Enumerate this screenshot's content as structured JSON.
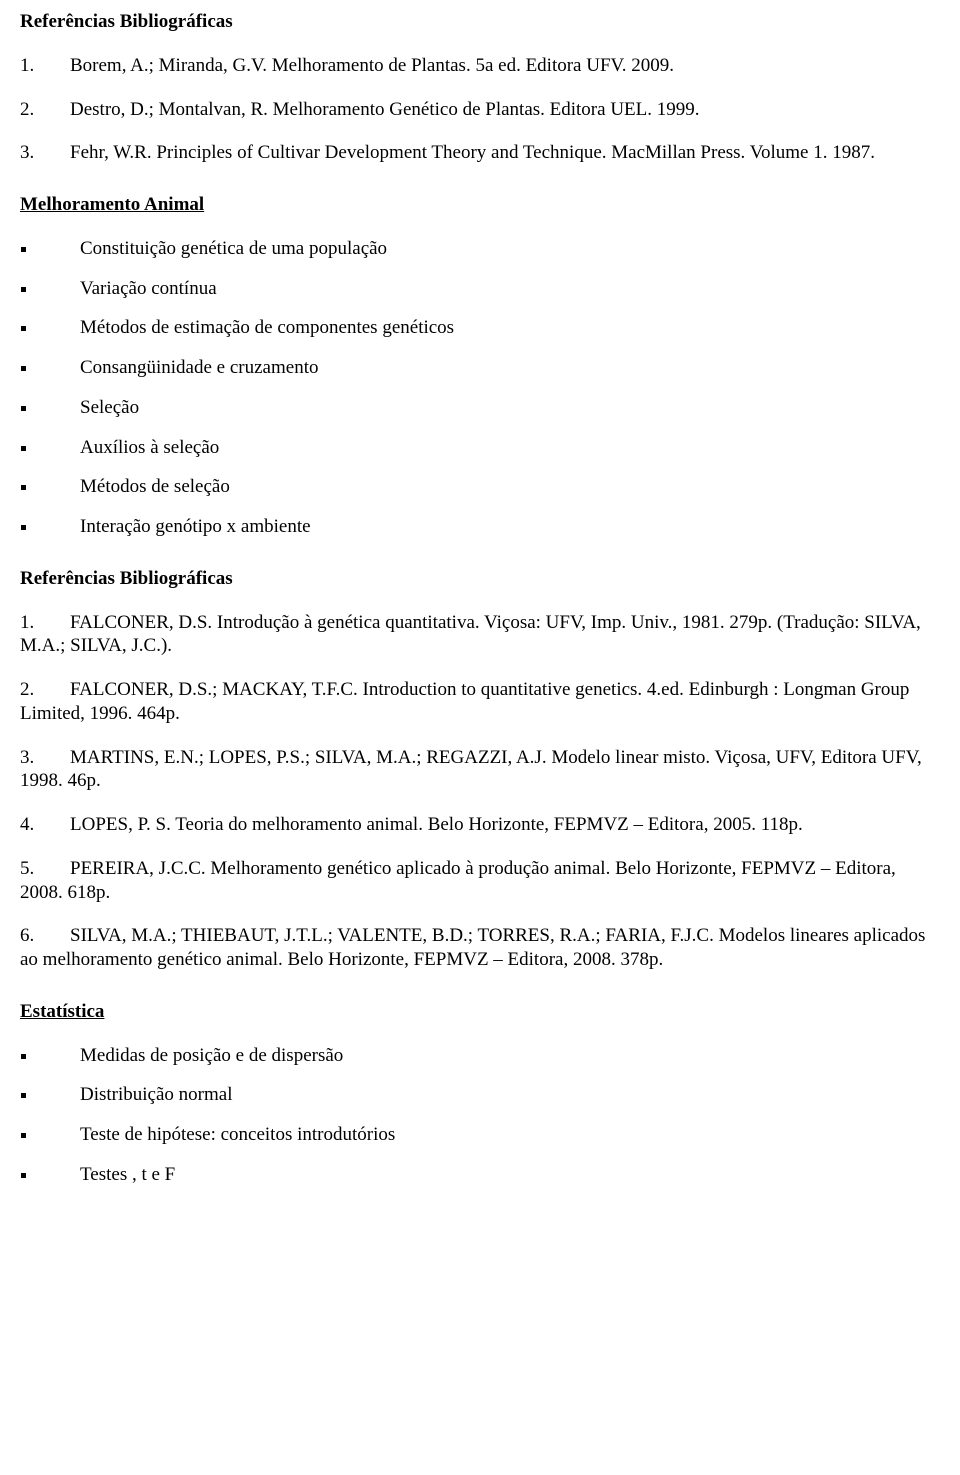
{
  "headings": {
    "ref1": "Referências Bibliográficas",
    "animal": "Melhoramento Animal",
    "ref2": "Referências Bibliográficas",
    "estat": "Estatística"
  },
  "refsA": {
    "r1": {
      "n": "1.",
      "text": "Borem, A.; Miranda, G.V. Melhoramento de Plantas. 5a ed. Editora UFV. 2009."
    },
    "r2": {
      "n": "2.",
      "text": "Destro, D.; Montalvan, R. Melhoramento Genético de Plantas. Editora UEL. 1999."
    },
    "r3": {
      "n": "3.",
      "text": "Fehr, W.R. Principles of Cultivar Development Theory and Technique. MacMillan Press. Volume 1. 1987."
    }
  },
  "listAnimal": {
    "i0": "Constituição genética de uma população",
    "i1": "Variação contínua",
    "i2": " Métodos de estimação de componentes genéticos",
    "i3": "Consangüinidade e cruzamento",
    "i4": "Seleção",
    "i5": "Auxílios à seleção",
    "i6": "Métodos de seleção",
    "i7": "Interação genótipo x ambiente"
  },
  "refsB": {
    "r1": {
      "n": "1.",
      "text": "FALCONER, D.S. Introdução à genética quantitativa. Viçosa: UFV, Imp. Univ., 1981. 279p. (Tradução: SILVA, M.A.; SILVA, J.C.)."
    },
    "r2": {
      "n": "2.",
      "text": "FALCONER, D.S.; MACKAY, T.F.C. Introduction to quantitative genetics. 4.ed. Edinburgh : Longman Group Limited, 1996. 464p."
    },
    "r3": {
      "n": "3.",
      "text": "MARTINS, E.N.; LOPES, P.S.; SILVA, M.A.; REGAZZI, A.J. Modelo linear misto. Viçosa, UFV, Editora UFV, 1998. 46p."
    },
    "r4": {
      "n": "4.",
      "text": "LOPES, P. S. Teoria do melhoramento animal. Belo Horizonte, FEPMVZ – Editora, 2005. 118p."
    },
    "r5": {
      "n": "5.",
      "text": "PEREIRA, J.C.C. Melhoramento genético aplicado à produção animal. Belo Horizonte, FEPMVZ – Editora, 2008. 618p."
    },
    "r6": {
      "n": "6.",
      "text": "SILVA, M.A.; THIEBAUT, J.T.L.; VALENTE, B.D.; TORRES, R.A.; FARIA, F.J.C. Modelos lineares aplicados ao melhoramento genético animal. Belo Horizonte, FEPMVZ – Editora, 2008. 378p."
    }
  },
  "listEstat": {
    "i0": "Medidas de posição e de dispersão",
    "i1": "Distribuição normal",
    "i2": "Teste de hipótese: conceitos introdutórios",
    "i3": "Testes  , t e F"
  }
}
